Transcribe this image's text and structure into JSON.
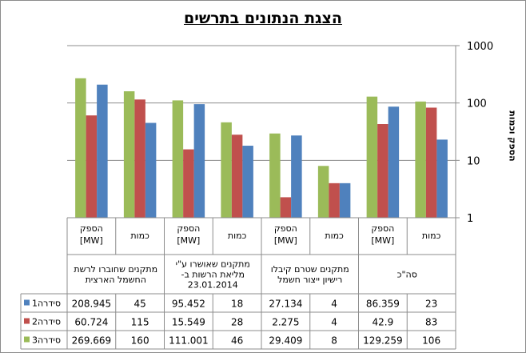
{
  "chart_data": {
    "type": "bar",
    "title": "הצגת הנתונים בתרשים",
    "ylabel": "הספק וכמות",
    "yscale": "log",
    "ylim": [
      1,
      1000
    ],
    "yticks": [
      "1000",
      "100",
      "10",
      "1"
    ],
    "grid": true,
    "legend_position": "left of data table",
    "groups": [
      {
        "label": "סה\"כ",
        "subcategories": [
          "כמות",
          "הספק [MW]"
        ]
      },
      {
        "label": "מתקנים שטרם קיבלו רישיון ייצור חשמל",
        "subcategories": [
          "כמות",
          "הספק [MW]"
        ]
      },
      {
        "label": "מתקנים שאושרו ע\"י מליאת הרשות ב- 23.01.2014",
        "subcategories": [
          "כמות",
          "הספק [MW]"
        ]
      },
      {
        "label": "מתקנים שחוברו לרשת החשמל הארצית",
        "subcategories": [
          "כמות",
          "הספק [MW]"
        ]
      }
    ],
    "categories_left_to_right": [
      "הספק [MW]",
      "כמות",
      "הספק [MW]",
      "כמות",
      "הספק [MW]",
      "כמות",
      "הספק [MW]",
      "כמות"
    ],
    "series": [
      {
        "name": "סידרה1",
        "color": "#4F81BD",
        "values": [
          208.945,
          45,
          95.452,
          18,
          27.134,
          4,
          86.359,
          23
        ],
        "labels": [
          "208.945",
          "45",
          "95.452",
          "18",
          "27.134",
          "4",
          "86.359",
          "23"
        ]
      },
      {
        "name": "סידרה2",
        "color": "#C0504D",
        "values": [
          60.724,
          115,
          15.549,
          28,
          2.275,
          4,
          42.9,
          83
        ],
        "labels": [
          "60.724",
          "115",
          "15.549",
          "28",
          "2.275",
          "4",
          "42.9",
          "83"
        ]
      },
      {
        "name": "סידרה3",
        "color": "#9BBB59",
        "values": [
          269.669,
          160,
          111.001,
          46,
          29.409,
          8,
          129.259,
          106
        ],
        "labels": [
          "269.669",
          "160",
          "111.001",
          "46",
          "29.409",
          "8",
          "129.259",
          "106"
        ]
      }
    ]
  }
}
